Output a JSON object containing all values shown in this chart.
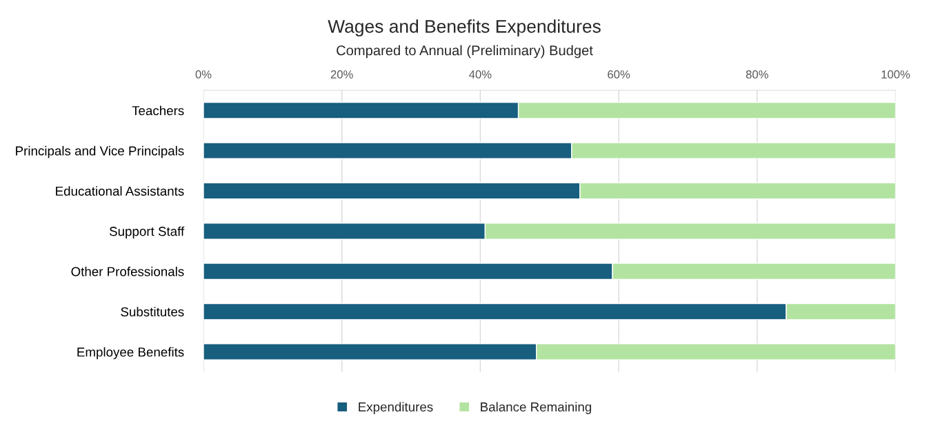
{
  "chart_data": {
    "type": "bar",
    "orientation": "horizontal",
    "stacked": true,
    "title": "Wages and Benefits Expenditures",
    "subtitle": "Compared to Annual (Preliminary) Budget",
    "categories": [
      "Teachers",
      "Principals and Vice Principals",
      "Educational Assistants",
      "Support Staff",
      "Other Professionals",
      "Substitutes",
      "Employee Benefits"
    ],
    "series": [
      {
        "name": "Expenditures",
        "color": "#175e7f",
        "values": [
          45.5,
          53.2,
          54.4,
          40.7,
          59.1,
          84.2,
          48.1
        ]
      },
      {
        "name": "Balance Remaining",
        "color": "#b3e3a1",
        "values": [
          54.5,
          46.8,
          45.6,
          59.3,
          40.9,
          15.8,
          51.9
        ]
      }
    ],
    "xlim": [
      0,
      100
    ],
    "xticks": [
      {
        "value": 0,
        "label": "0%"
      },
      {
        "value": 20,
        "label": "20%"
      },
      {
        "value": 40,
        "label": "40%"
      },
      {
        "value": 60,
        "label": "60%"
      },
      {
        "value": 80,
        "label": "80%"
      },
      {
        "value": 100,
        "label": "100%"
      }
    ],
    "grid": "x",
    "legend": "bottom"
  }
}
